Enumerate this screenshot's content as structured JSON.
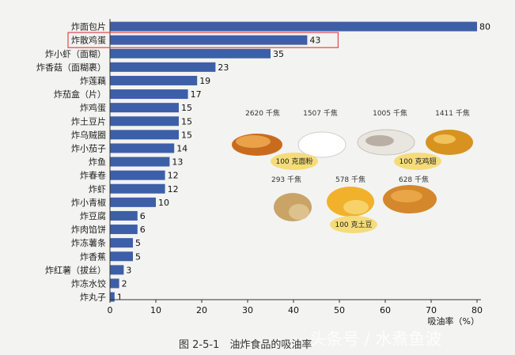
{
  "chart_data": {
    "type": "bar",
    "orientation": "horizontal",
    "categories": [
      "炸面包片",
      "炸散鸡蛋",
      "炸小虾（面糊）",
      "炸香菇（面糊裹）",
      "炸莲藕",
      "炸茄盒（片）",
      "炸鸡蛋",
      "炸土豆片",
      "炸乌贼圈",
      "炸小茄子",
      "炸鱼",
      "炸春卷",
      "炸虾",
      "炸小青椒",
      "炸豆腐",
      "炸肉馅饼",
      "炸冻薯条",
      "炸香蕉",
      "炸红薯（拔丝）",
      "炸冻水饺",
      "炸丸子"
    ],
    "values": [
      80,
      43,
      35,
      23,
      19,
      17,
      15,
      15,
      15,
      14,
      13,
      12,
      12,
      10,
      6,
      6,
      5,
      5,
      3,
      2,
      1
    ],
    "highlighted_category": "炸散鸡蛋",
    "xlabel": "吸油率（%）",
    "xticks": [
      0,
      10,
      20,
      30,
      40,
      50,
      60,
      70,
      80
    ],
    "xlim": [
      0,
      80
    ],
    "bar_color": "#3d5fa8",
    "highlight_color": "#e0484a",
    "grid": false
  },
  "annotations": {
    "energies": [
      "2620 千焦",
      "1507 千焦",
      "1005 千焦",
      "1411 千焦",
      "293 千焦",
      "578 千焦",
      "628 千焦"
    ],
    "tags": [
      "100 克面粉",
      "100 克鸡翅",
      "100 克土豆"
    ]
  },
  "caption": "图 2-5-1　油炸食品的吸油率",
  "watermark": "头条号 / 水煮鱼波"
}
